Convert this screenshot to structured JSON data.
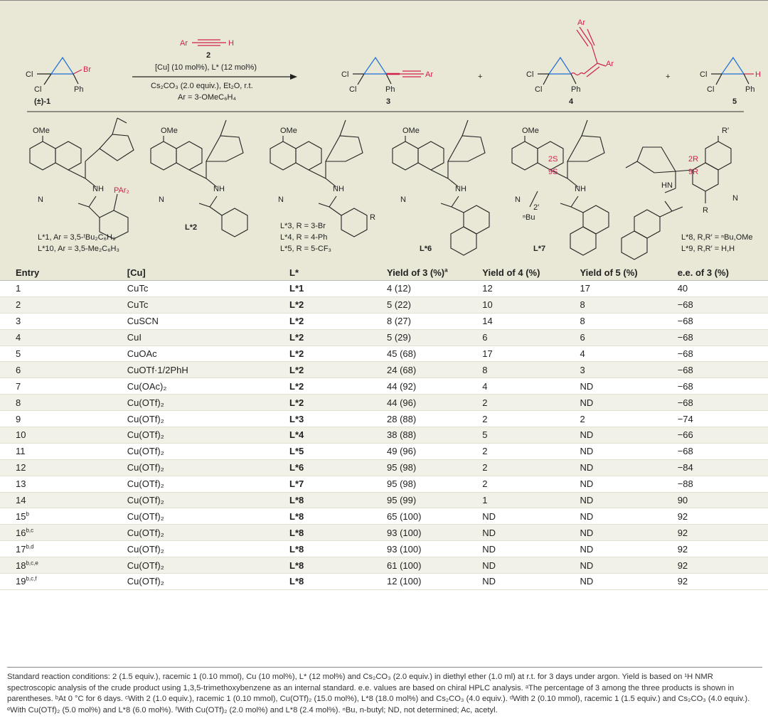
{
  "scheme": {
    "reagent_label": "Ar",
    "reagent_h": "H",
    "reagent_number": "2",
    "cond_line1": "[Cu] (10 mol%), L* (12 mol%)",
    "cond_line2": "Cs₂CO₃ (2.0 equiv.), Et₂O, r.t.",
    "cond_line3": "Ar = 3-OMeC₆H₄",
    "sm_label": "(±)-1",
    "sm_br": "Br",
    "sm_cl1": "Cl",
    "sm_cl2": "Cl",
    "sm_ph": "Ph",
    "p3_label": "3",
    "p3_ar": "Ar",
    "p4_label": "4",
    "p4_ar1": "Ar",
    "p4_ar2": "Ar",
    "p5_label": "5",
    "p5_h": "H",
    "plus": "+",
    "ligands": [
      {
        "id": "L1",
        "ome": "OMe",
        "nh": "NH",
        "par": "PAr₂",
        "n": "N",
        "caption1": "L*1, Ar = 3,5-ᵗBu₂C₆H₃",
        "caption2": "L*10, Ar = 3,5-Me₂C₆H₃"
      },
      {
        "id": "L2",
        "ome": "OMe",
        "nh": "NH",
        "n": "N",
        "caption1": "L*2"
      },
      {
        "id": "L3",
        "ome": "OMe",
        "nh": "NH",
        "n": "N",
        "r": "R",
        "caption1": "L*3, R = 3-Br",
        "caption2": "L*4, R = 4-Ph",
        "caption3": "L*5, R = 5-CF₃"
      },
      {
        "id": "L6",
        "ome": "OMe",
        "nh": "NH",
        "n": "N",
        "caption1": "L*6"
      },
      {
        "id": "L7",
        "ome": "OMe",
        "nh": "NH",
        "n": "N",
        "s2": "2S",
        "s9": "9S",
        "bu": "ⁿBu",
        "pos2": "2′",
        "caption1": "L*7"
      },
      {
        "id": "L8",
        "r_prime": "R′",
        "hn": "HN",
        "n": "N",
        "r": "R",
        "r2": "2R",
        "r9": "9R",
        "caption1": "L*8, R,R′ = ⁿBu,OMe",
        "caption2": "L*9, R,R′ = H,H"
      }
    ]
  },
  "table": {
    "headers": [
      "Entry",
      "[Cu]",
      "L*",
      "Yield of 3 (%)",
      "Yield of 4 (%)",
      "Yield of 5 (%)",
      "e.e. of 3 (%)"
    ],
    "header_sup": "a",
    "rows": [
      {
        "entry": "1",
        "sup": "",
        "cu": "CuTc",
        "l": "L*1",
        "y3": "4 (12)",
        "y4": "12",
        "y5": "17",
        "ee": "40"
      },
      {
        "entry": "2",
        "sup": "",
        "cu": "CuTc",
        "l": "L*2",
        "y3": "5 (22)",
        "y4": "10",
        "y5": "8",
        "ee": "−68"
      },
      {
        "entry": "3",
        "sup": "",
        "cu": "CuSCN",
        "l": "L*2",
        "y3": "8 (27)",
        "y4": "14",
        "y5": "8",
        "ee": "−68"
      },
      {
        "entry": "4",
        "sup": "",
        "cu": "CuI",
        "l": "L*2",
        "y3": "5 (29)",
        "y4": "6",
        "y5": "6",
        "ee": "−68"
      },
      {
        "entry": "5",
        "sup": "",
        "cu": "CuOAc",
        "l": "L*2",
        "y3": "45 (68)",
        "y4": "17",
        "y5": "4",
        "ee": "−68"
      },
      {
        "entry": "6",
        "sup": "",
        "cu": "CuOTf·1/2PhH",
        "l": "L*2",
        "y3": "24 (68)",
        "y4": "8",
        "y5": "3",
        "ee": "−68"
      },
      {
        "entry": "7",
        "sup": "",
        "cu": "Cu(OAc)₂",
        "l": "L*2",
        "y3": "44 (92)",
        "y4": "4",
        "y5": "ND",
        "ee": "−68"
      },
      {
        "entry": "8",
        "sup": "",
        "cu": "Cu(OTf)₂",
        "l": "L*2",
        "y3": "44 (96)",
        "y4": "2",
        "y5": "ND",
        "ee": "−68"
      },
      {
        "entry": "9",
        "sup": "",
        "cu": "Cu(OTf)₂",
        "l": "L*3",
        "y3": "28 (88)",
        "y4": "2",
        "y5": "2",
        "ee": "−74"
      },
      {
        "entry": "10",
        "sup": "",
        "cu": "Cu(OTf)₂",
        "l": "L*4",
        "y3": "38 (88)",
        "y4": "5",
        "y5": "ND",
        "ee": "−66"
      },
      {
        "entry": "11",
        "sup": "",
        "cu": "Cu(OTf)₂",
        "l": "L*5",
        "y3": "49 (96)",
        "y4": "2",
        "y5": "ND",
        "ee": "−68"
      },
      {
        "entry": "12",
        "sup": "",
        "cu": "Cu(OTf)₂",
        "l": "L*6",
        "y3": "95 (98)",
        "y4": "2",
        "y5": "ND",
        "ee": "−84"
      },
      {
        "entry": "13",
        "sup": "",
        "cu": "Cu(OTf)₂",
        "l": "L*7",
        "y3": "95 (98)",
        "y4": "2",
        "y5": "ND",
        "ee": "−88"
      },
      {
        "entry": "14",
        "sup": "",
        "cu": "Cu(OTf)₂",
        "l": "L*8",
        "y3": "95 (99)",
        "y4": "1",
        "y5": "ND",
        "ee": "90"
      },
      {
        "entry": "15",
        "sup": "b",
        "cu": "Cu(OTf)₂",
        "l": "L*8",
        "y3": "65 (100)",
        "y4": "ND",
        "y5": "ND",
        "ee": "92"
      },
      {
        "entry": "16",
        "sup": "b,c",
        "cu": "Cu(OTf)₂",
        "l": "L*8",
        "y3": "93 (100)",
        "y4": "ND",
        "y5": "ND",
        "ee": "92"
      },
      {
        "entry": "17",
        "sup": "b,d",
        "cu": "Cu(OTf)₂",
        "l": "L*8",
        "y3": "93 (100)",
        "y4": "ND",
        "y5": "ND",
        "ee": "92"
      },
      {
        "entry": "18",
        "sup": "b,c,e",
        "cu": "Cu(OTf)₂",
        "l": "L*8",
        "y3": "61 (100)",
        "y4": "ND",
        "y5": "ND",
        "ee": "92"
      },
      {
        "entry": "19",
        "sup": "b,c,f",
        "cu": "Cu(OTf)₂",
        "l": "L*8",
        "y3": "12 (100)",
        "y4": "ND",
        "y5": "ND",
        "ee": "92"
      }
    ]
  },
  "footnote": "Standard reaction conditions: 2 (1.5 equiv.), racemic 1 (0.10 mmol), Cu (10 mol%), L* (12 mol%) and Cs₂CO₃ (2.0 equiv.) in diethyl ether (1.0 ml) at r.t. for 3 days under argon. Yield is based on ¹H NMR spectroscopic analysis of the crude product using 1,3,5-trimethoxybenzene as an internal standard. e.e. values are based on chiral HPLC analysis. ᵃThe percentage of 3 among the three products is shown in parentheses. ᵇAt 0 °C for 6 days. ᶜWith 2 (1.0 equiv.), racemic 1 (0.10 mmol), Cu(OTf)₂ (15.0 mol%), L*8 (18.0 mol%) and Cs₂CO₃ (4.0 equiv.). ᵈWith 2 (0.10 mmol), racemic 1 (1.5 equiv.) and Cs₂CO₃ (4.0 equiv.). ᵉWith Cu(OTf)₂ (5.0 mol%) and L*8 (6.0 mol%). ᶠWith Cu(OTf)₂ (2.0 mol%) and L*8 (2.4 mol%). ⁿBu, n-butyl; ND, not determined; Ac, acetyl."
}
